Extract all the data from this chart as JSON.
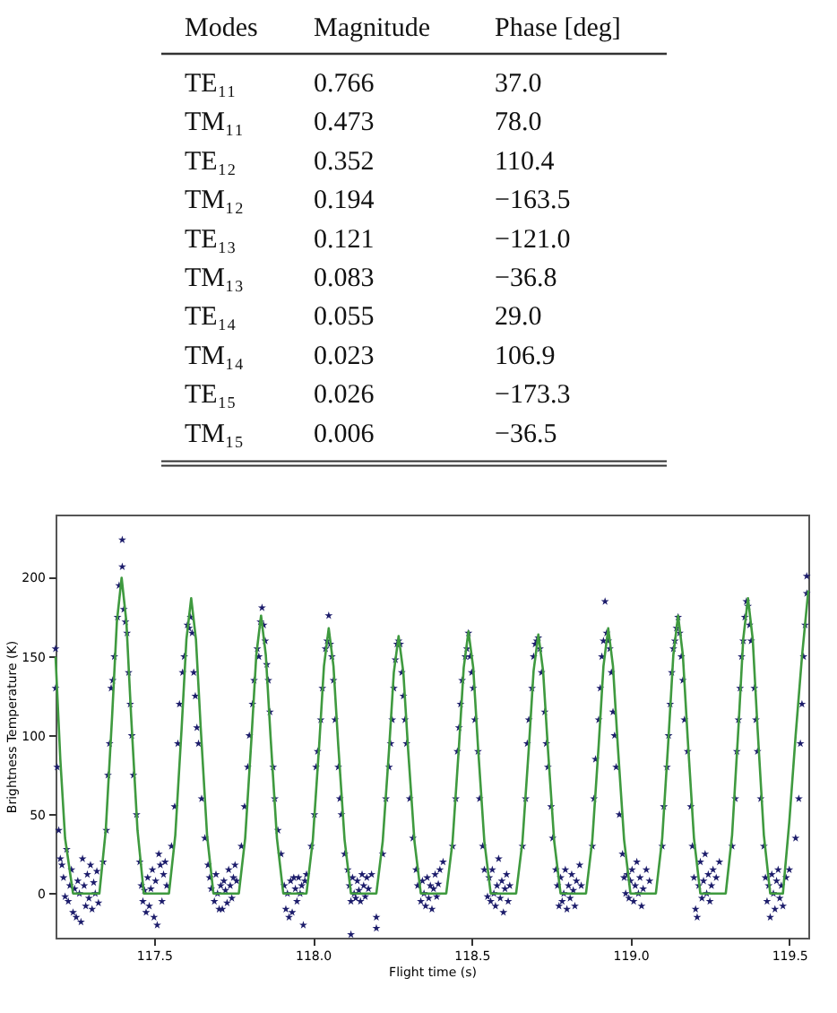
{
  "chart_data": [
    {
      "type": "other",
      "xlabel": "Modes",
      "categories": [
        "TE₁₁",
        "TM₁₁",
        "TE₁₂",
        "TM₁₂",
        "TE₁₃",
        "TM₁₃",
        "TE₁₄",
        "TM₁₄",
        "TE₁₅",
        "TM₁₅"
      ],
      "series": [
        {
          "name": "Magnitude",
          "values": [
            0.766,
            0.473,
            0.352,
            0.194,
            0.121,
            0.083,
            0.055,
            0.023,
            0.026,
            0.006
          ],
          "value_labels": [
            "0.766",
            "0.473",
            "0.352",
            "0.194",
            "0.121",
            "0.083",
            "0.055",
            "0.023",
            "0.026",
            "0.006"
          ]
        },
        {
          "name": "Phase [deg]",
          "values": [
            37.0,
            78.0,
            110.4,
            -163.5,
            -121.0,
            -36.8,
            29.0,
            106.9,
            -173.3,
            -36.5
          ],
          "value_labels": [
            "37.0",
            "78.0",
            "110.4",
            "−163.5",
            "−121.0",
            "−36.8",
            "29.0",
            "106.9",
            "−173.3",
            "−36.5"
          ]
        }
      ]
    },
    {
      "type": "scatter",
      "xlabel": "Flight time (s)",
      "ylabel": "Brightness Temperature (K)",
      "xlim": [
        117.19,
        119.56
      ],
      "ylim": [
        -28,
        240
      ],
      "xticks": [
        117.5,
        {
          "value": 118,
          "label": "118.0"
        },
        118.5,
        {
          "value": 119,
          "label": "119.0"
        },
        119.5
      ],
      "yticks": [
        0,
        50,
        100,
        150,
        200
      ],
      "grid": false,
      "series": [
        {
          "type": "scatter",
          "marker": "star",
          "color": "#1c1c6b",
          "x": [
            117.19,
            117.19,
            117.195,
            117.2,
            117.205,
            117.21,
            117.215,
            117.22,
            117.225,
            117.23,
            117.235,
            117.24,
            117.245,
            117.25,
            117.255,
            117.26,
            117.265,
            117.27,
            117.275,
            117.28,
            117.285,
            117.29,
            117.295,
            117.3,
            117.305,
            117.31,
            117.315,
            117.32,
            117.325,
            117.34,
            117.35,
            117.355,
            117.36,
            117.365,
            117.37,
            117.375,
            117.385,
            117.39,
            117.4,
            117.4,
            117.405,
            117.41,
            117.415,
            117.42,
            117.425,
            117.43,
            117.435,
            117.445,
            117.455,
            117.46,
            117.465,
            117.47,
            117.475,
            117.48,
            117.485,
            117.49,
            117.495,
            117.5,
            117.505,
            117.51,
            117.515,
            117.52,
            117.525,
            117.53,
            117.535,
            117.54,
            117.555,
            117.565,
            117.575,
            117.58,
            117.59,
            117.595,
            117.605,
            117.61,
            117.615,
            117.62,
            117.625,
            117.63,
            117.635,
            117.64,
            117.65,
            117.66,
            117.67,
            117.675,
            117.68,
            117.69,
            117.695,
            117.7,
            117.705,
            117.71,
            117.715,
            117.72,
            117.725,
            117.73,
            117.735,
            117.74,
            117.745,
            117.75,
            117.755,
            117.76,
            117.775,
            117.785,
            117.795,
            117.8,
            117.81,
            117.815,
            117.825,
            117.83,
            117.835,
            117.84,
            117.845,
            117.85,
            117.855,
            117.86,
            117.865,
            117.875,
            117.88,
            117.89,
            117.9,
            117.91,
            117.915,
            117.92,
            117.925,
            117.93,
            117.935,
            117.94,
            117.945,
            117.95,
            117.955,
            117.96,
            117.965,
            117.97,
            117.975,
            117.98,
            117.995,
            118.005,
            118.01,
            118.015,
            118.025,
            118.03,
            118.04,
            118.045,
            118.05,
            118.055,
            118.06,
            118.065,
            118.07,
            118.08,
            118.085,
            118.09,
            118.1,
            118.11,
            118.115,
            118.12,
            118.12,
            118.125,
            118.13,
            118.135,
            118.14,
            118.145,
            118.15,
            118.155,
            118.16,
            118.165,
            118.17,
            118.175,
            118.2,
            118.2,
            118.185,
            118.22,
            118.23,
            118.24,
            118.245,
            118.25,
            118.255,
            118.26,
            118.265,
            118.27,
            118.275,
            118.28,
            118.285,
            118.29,
            118.295,
            118.305,
            118.315,
            118.325,
            118.33,
            118.34,
            118.345,
            118.35,
            118.355,
            118.36,
            118.365,
            118.37,
            118.375,
            118.38,
            118.385,
            118.39,
            118.395,
            118.4,
            118.41,
            118.44,
            118.45,
            118.455,
            118.46,
            118.465,
            118.47,
            118.48,
            118.485,
            118.49,
            118.495,
            118.5,
            118.505,
            118.51,
            118.52,
            118.525,
            118.535,
            118.54,
            118.55,
            118.555,
            118.56,
            118.565,
            118.57,
            118.575,
            118.58,
            118.585,
            118.59,
            118.595,
            118.6,
            118.605,
            118.61,
            118.615,
            118.62,
            118.66,
            118.67,
            118.675,
            118.68,
            118.69,
            118.695,
            118.7,
            118.705,
            118.71,
            118.715,
            118.72,
            118.73,
            118.735,
            118.74,
            118.75,
            118.755,
            118.765,
            118.77,
            118.775,
            118.78,
            118.785,
            118.79,
            118.795,
            118.8,
            118.805,
            118.81,
            118.815,
            118.82,
            118.825,
            118.83,
            118.84,
            118.845,
            118.88,
            118.885,
            118.89,
            118.9,
            118.905,
            118.91,
            118.915,
            118.92,
            118.925,
            118.93,
            118.935,
            118.94,
            118.945,
            118.95,
            118.955,
            118.965,
            118.975,
            118.98,
            118.985,
            118.99,
            118.995,
            119.0,
            119.005,
            119.01,
            119.015,
            119.02,
            119.025,
            119.03,
            119.035,
            119.04,
            119.05,
            119.06,
            119.1,
            119.105,
            119.115,
            119.12,
            119.125,
            119.13,
            119.135,
            119.14,
            119.145,
            119.15,
            119.155,
            119.16,
            119.165,
            119.17,
            119.18,
            119.19,
            119.195,
            119.2,
            119.205,
            119.21,
            119.215,
            119.22,
            119.225,
            119.23,
            119.235,
            119.24,
            119.245,
            119.25,
            119.255,
            119.26,
            119.27,
            119.28,
            119.32,
            119.33,
            119.335,
            119.34,
            119.345,
            119.35,
            119.355,
            119.36,
            119.365,
            119.37,
            119.375,
            119.38,
            119.39,
            119.395,
            119.4,
            119.41,
            119.42,
            119.425,
            119.43,
            119.435,
            119.44,
            119.445,
            119.45,
            119.455,
            119.46,
            119.465,
            119.47,
            119.475,
            119.48,
            119.49,
            119.5,
            119.52,
            119.53,
            119.535,
            119.54,
            119.545,
            119.55,
            119.555,
            119.555
          ],
          "values": [
            155,
            130,
            80,
            40,
            22,
            18,
            10,
            -2,
            28,
            -5,
            5,
            15,
            -12,
            3,
            -15,
            8,
            0,
            -18,
            22,
            5,
            -8,
            12,
            -3,
            18,
            -10,
            7,
            0,
            14,
            -6,
            20,
            40,
            75,
            95,
            130,
            135,
            150,
            175,
            195,
            224,
            207,
            180,
            172,
            165,
            140,
            120,
            100,
            75,
            50,
            20,
            5,
            -5,
            2,
            -12,
            10,
            -8,
            3,
            15,
            -15,
            8,
            -20,
            25,
            18,
            -5,
            12,
            20,
            5,
            30,
            55,
            95,
            120,
            140,
            150,
            170,
            168,
            175,
            165,
            140,
            125,
            105,
            95,
            60,
            35,
            18,
            10,
            3,
            -5,
            12,
            0,
            -10,
            5,
            -10,
            8,
            2,
            -6,
            15,
            5,
            -3,
            10,
            18,
            8,
            30,
            55,
            80,
            100,
            120,
            135,
            155,
            150,
            172,
            181,
            170,
            160,
            145,
            135,
            115,
            80,
            60,
            40,
            25,
            5,
            -10,
            0,
            -15,
            8,
            -12,
            10,
            3,
            -5,
            10,
            0,
            5,
            -20,
            8,
            12,
            30,
            50,
            80,
            90,
            110,
            130,
            155,
            160,
            176,
            158,
            150,
            135,
            110,
            80,
            60,
            50,
            25,
            15,
            5,
            -5,
            -26,
            10,
            0,
            -3,
            8,
            2,
            -5,
            12,
            5,
            -2,
            10,
            3,
            -15,
            -22,
            12,
            25,
            60,
            80,
            95,
            110,
            130,
            148,
            158,
            160,
            158,
            140,
            125,
            110,
            95,
            60,
            35,
            15,
            5,
            -5,
            8,
            0,
            -8,
            10,
            -3,
            5,
            -10,
            3,
            12,
            -2,
            6,
            15,
            20,
            30,
            60,
            90,
            105,
            120,
            135,
            150,
            155,
            165,
            150,
            140,
            130,
            110,
            90,
            60,
            30,
            15,
            -2,
            10,
            -5,
            15,
            0,
            -8,
            5,
            22,
            -3,
            8,
            -12,
            3,
            12,
            -5,
            5,
            30,
            60,
            95,
            110,
            130,
            150,
            158,
            160,
            162,
            155,
            140,
            115,
            95,
            80,
            55,
            35,
            15,
            5,
            -8,
            10,
            -5,
            0,
            15,
            -10,
            5,
            -3,
            12,
            2,
            -8,
            8,
            18,
            5,
            30,
            60,
            85,
            110,
            130,
            150,
            160,
            185,
            165,
            160,
            155,
            140,
            115,
            100,
            80,
            50,
            25,
            10,
            0,
            12,
            -3,
            8,
            15,
            -5,
            5,
            20,
            0,
            10,
            -8,
            3,
            15,
            8,
            30,
            55,
            80,
            100,
            120,
            140,
            155,
            160,
            168,
            175,
            165,
            150,
            135,
            110,
            90,
            55,
            30,
            10,
            -10,
            -15,
            5,
            20,
            -3,
            8,
            25,
            0,
            12,
            -5,
            5,
            15,
            10,
            20,
            30,
            60,
            90,
            110,
            130,
            150,
            160,
            175,
            185,
            182,
            170,
            160,
            130,
            110,
            90,
            60,
            30,
            10,
            -5,
            5,
            -15,
            12,
            0,
            -10,
            8,
            15,
            -3,
            5,
            -8,
            10,
            15,
            35,
            60,
            95,
            120,
            150,
            170,
            190,
            201
          ]
        },
        {
          "type": "line",
          "marker": "none",
          "line_style": "solid",
          "color": "#3f9a3f",
          "x": [
            117.19,
            117.205,
            117.22,
            117.245,
            117.328,
            117.348,
            117.368,
            117.383,
            117.398,
            117.413,
            117.428,
            117.448,
            117.468,
            117.547,
            117.567,
            117.587,
            117.602,
            117.617,
            117.632,
            117.647,
            117.667,
            117.687,
            117.767,
            117.787,
            117.807,
            117.822,
            117.837,
            117.852,
            117.867,
            117.887,
            117.907,
            117.98,
            118.0,
            118.02,
            118.035,
            118.05,
            118.065,
            118.08,
            118.1,
            118.12,
            118.2,
            118.22,
            118.24,
            118.255,
            118.27,
            118.285,
            118.3,
            118.32,
            118.34,
            118.42,
            118.44,
            118.46,
            118.475,
            118.49,
            118.505,
            118.52,
            118.54,
            118.56,
            118.64,
            118.66,
            118.68,
            118.695,
            118.71,
            118.725,
            118.74,
            118.76,
            118.78,
            118.86,
            118.88,
            118.9,
            118.915,
            118.93,
            118.945,
            118.96,
            118.98,
            119.0,
            119.08,
            119.1,
            119.12,
            119.135,
            119.15,
            119.165,
            119.18,
            119.2,
            119.22,
            119.3,
            119.32,
            119.34,
            119.355,
            119.37,
            119.385,
            119.4,
            119.42,
            119.44,
            119.48,
            119.5,
            119.52,
            119.54,
            119.56
          ],
          "values": [
            150,
            85,
            35,
            0,
            0,
            40,
            112,
            172,
            200,
            172,
            112,
            40,
            0,
            0,
            37,
            105,
            161,
            187,
            161,
            105,
            37,
            0,
            0,
            35,
            99,
            151,
            176,
            151,
            99,
            35,
            0,
            0,
            34,
            94,
            144,
            168,
            144,
            94,
            34,
            0,
            0,
            33,
            91,
            140,
            163,
            140,
            91,
            33,
            0,
            0,
            33,
            93,
            143,
            166,
            143,
            93,
            33,
            0,
            0,
            33,
            92,
            141,
            164,
            141,
            92,
            33,
            0,
            0,
            34,
            94,
            144,
            168,
            144,
            94,
            34,
            0,
            0,
            35,
            99,
            151,
            176,
            151,
            99,
            35,
            0,
            0,
            37,
            105,
            161,
            187,
            161,
            105,
            37,
            0,
            0,
            45,
            100,
            150,
            192
          ]
        }
      ]
    }
  ]
}
